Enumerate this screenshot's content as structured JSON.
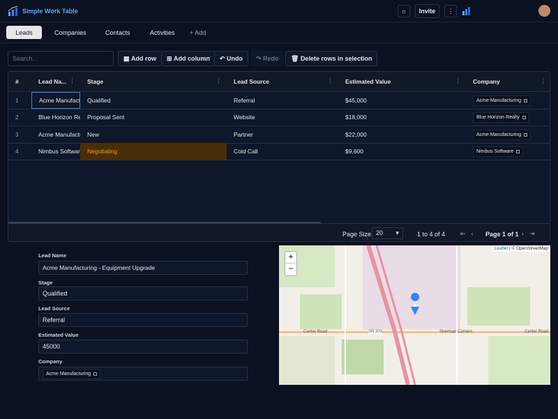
{
  "header": {
    "app_name": "Simple Work Table",
    "invite": "Invite"
  },
  "tabs": [
    "Leads",
    "Companies",
    "Contacts",
    "Activities",
    "+ Add"
  ],
  "toolbar": {
    "search_placeholder": "Search...",
    "buttons": [
      "Add row",
      "Add column",
      "Undo",
      "Redo",
      "Delete rows in selection"
    ]
  },
  "table": {
    "columns": [
      "#",
      "Lead Na...",
      "Stage",
      "Lead Source",
      "Estimated Value",
      "Company"
    ],
    "rows": [
      [
        "1",
        "Acme Manufactu",
        "Qualified",
        "Referral",
        "$45,000",
        "Acme Manufacturing"
      ],
      [
        "2",
        "Blue Horizon Rea",
        "Proposal Sent",
        "Website",
        "$18,000",
        "Blue Horizon Realty"
      ],
      [
        "3",
        "Acme Manufactu",
        "New",
        "Partner",
        "$22,000",
        "Acme Manufacturing"
      ],
      [
        "4",
        "Nimbus Software",
        "Negotiating",
        "Cold Call",
        "$9,600",
        "Nimbus Software"
      ]
    ]
  },
  "pagination": {
    "page_size_label": "Page Size:",
    "page_size": "20",
    "range": "1 to 4 of 4",
    "page": "Page 1 of 1"
  },
  "form": {
    "fields": [
      {
        "label": "Lead Name",
        "value": "Acme Manufacturing - Equipment Upgrade"
      },
      {
        "label": "Stage",
        "value": "Qualified"
      },
      {
        "label": "Lead Source",
        "value": "Referral"
      },
      {
        "label": "Estimated Value",
        "value": "45000"
      },
      {
        "label": "Company",
        "value": "Acme Manufacturing"
      }
    ]
  },
  "map": {
    "zoom_in": "+",
    "zoom_out": "−",
    "attribution_leaflet": "Leaflet",
    "attribution_osm": "| © OpenStreetMap",
    "labels": [
      "Center Road",
      "SR 303",
      "Sherman Corners",
      "Center Road"
    ]
  }
}
